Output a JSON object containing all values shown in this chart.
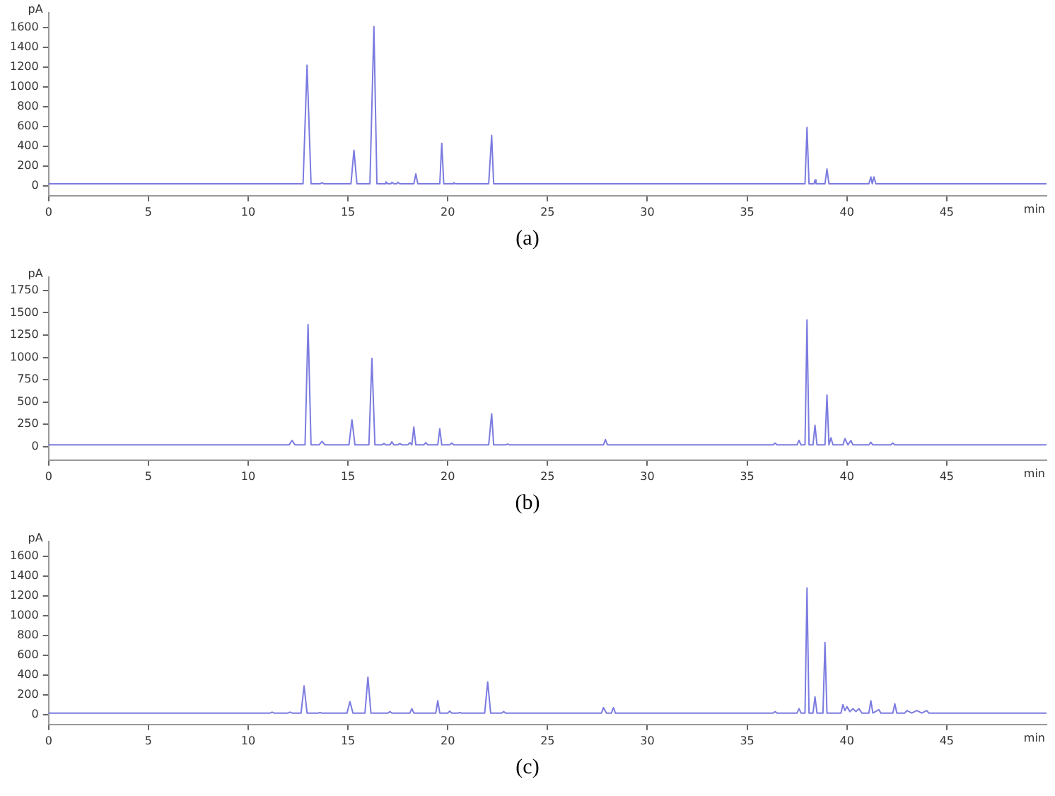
{
  "chart_data": [
    {
      "type": "line",
      "title": "(a)",
      "xlabel": "min",
      "ylabel": "pA",
      "xlim": [
        0,
        50
      ],
      "xticks": [
        0,
        5,
        10,
        15,
        20,
        25,
        30,
        35,
        40,
        45
      ],
      "ylim": [
        -100,
        1750
      ],
      "yticks": [
        0,
        200,
        400,
        600,
        800,
        1000,
        1200,
        1400,
        1600
      ],
      "grid": false,
      "legend": false,
      "marker": "none",
      "series": [
        {
          "color": "#7b7be0",
          "x": [
            0,
            12.75,
            12.95,
            13.15,
            13.6,
            13.7,
            13.8,
            15.15,
            15.3,
            15.45,
            16.1,
            16.3,
            16.45,
            16.85,
            16.9,
            17.0,
            17.15,
            17.2,
            17.3,
            17.45,
            17.5,
            17.6,
            18.3,
            18.4,
            18.5,
            19.6,
            19.7,
            19.8,
            20.25,
            20.3,
            20.4,
            22.05,
            22.2,
            22.3,
            37.9,
            38.0,
            38.1,
            38.35,
            38.4,
            38.45,
            38.9,
            39.0,
            39.1,
            41.1,
            41.2,
            41.27,
            41.35,
            41.45,
            50
          ],
          "values": [
            20,
            20,
            1220,
            20,
            20,
            30,
            20,
            20,
            360,
            20,
            20,
            1610,
            20,
            20,
            40,
            20,
            20,
            35,
            20,
            20,
            35,
            20,
            20,
            120,
            20,
            20,
            430,
            20,
            20,
            30,
            20,
            20,
            510,
            20,
            20,
            590,
            20,
            20,
            60,
            20,
            20,
            170,
            20,
            20,
            90,
            20,
            90,
            20,
            20
          ]
        }
      ]
    },
    {
      "type": "line",
      "title": "(b)",
      "xlabel": "min",
      "ylabel": "pA",
      "xlim": [
        0,
        50
      ],
      "xticks": [
        0,
        5,
        10,
        15,
        20,
        25,
        30,
        35,
        40,
        45
      ],
      "ylim": [
        -150,
        1900
      ],
      "yticks": [
        0,
        250,
        500,
        750,
        1000,
        1250,
        1500,
        1750
      ],
      "grid": false,
      "legend": false,
      "marker": "none",
      "series": [
        {
          "color": "#7b7be0",
          "x": [
            0,
            12.05,
            12.2,
            12.35,
            12.85,
            13.0,
            13.15,
            13.55,
            13.7,
            13.85,
            15.05,
            15.2,
            15.35,
            16.05,
            16.2,
            16.35,
            16.7,
            16.8,
            16.9,
            17.1,
            17.2,
            17.3,
            17.5,
            17.6,
            17.7,
            18.0,
            18.1,
            18.2,
            18.3,
            18.4,
            18.8,
            18.9,
            19.0,
            19.5,
            19.6,
            19.7,
            20.1,
            20.2,
            20.3,
            22.05,
            22.2,
            22.3,
            22.9,
            23.0,
            23.1,
            27.8,
            27.9,
            28.0,
            36.3,
            36.4,
            36.5,
            37.5,
            37.6,
            37.7,
            37.9,
            38.0,
            38.1,
            38.3,
            38.4,
            38.5,
            38.9,
            39.0,
            39.1,
            39.2,
            39.3,
            39.8,
            39.9,
            40.05,
            40.2,
            40.3,
            41.1,
            41.2,
            41.3,
            42.2,
            42.3,
            42.4,
            50
          ],
          "values": [
            20,
            20,
            70,
            20,
            20,
            1370,
            20,
            20,
            60,
            20,
            20,
            300,
            20,
            20,
            990,
            20,
            20,
            35,
            20,
            20,
            55,
            20,
            20,
            35,
            20,
            20,
            45,
            20,
            220,
            20,
            20,
            45,
            20,
            20,
            200,
            20,
            20,
            40,
            20,
            20,
            370,
            20,
            20,
            30,
            20,
            20,
            80,
            20,
            20,
            40,
            20,
            20,
            70,
            20,
            20,
            1420,
            20,
            20,
            240,
            20,
            20,
            580,
            20,
            100,
            20,
            20,
            90,
            20,
            70,
            20,
            20,
            50,
            20,
            20,
            40,
            20,
            20
          ]
        }
      ]
    },
    {
      "type": "line",
      "title": "(c)",
      "xlabel": "min",
      "ylabel": "pA",
      "xlim": [
        0,
        50
      ],
      "xticks": [
        0,
        5,
        10,
        15,
        20,
        25,
        30,
        35,
        40,
        45
      ],
      "ylim": [
        -100,
        1750
      ],
      "yticks": [
        0,
        200,
        400,
        600,
        800,
        1000,
        1200,
        1400,
        1600
      ],
      "grid": false,
      "legend": false,
      "marker": "none",
      "series": [
        {
          "color": "#7b7be0",
          "x": [
            0,
            11.1,
            11.2,
            11.3,
            12.0,
            12.1,
            12.2,
            12.65,
            12.8,
            12.95,
            13.5,
            13.6,
            13.7,
            14.95,
            15.1,
            15.25,
            15.85,
            16.0,
            16.15,
            17.0,
            17.1,
            17.2,
            18.1,
            18.2,
            18.3,
            19.4,
            19.5,
            19.6,
            20.0,
            20.1,
            20.2,
            20.5,
            20.6,
            20.7,
            21.85,
            22.0,
            22.15,
            22.7,
            22.8,
            22.9,
            27.7,
            27.8,
            27.95,
            28.2,
            28.3,
            28.4,
            36.3,
            36.4,
            36.5,
            37.5,
            37.6,
            37.7,
            37.9,
            38.0,
            38.1,
            38.3,
            38.4,
            38.5,
            38.8,
            38.9,
            39.0,
            39.7,
            39.8,
            39.9,
            40.0,
            40.15,
            40.3,
            40.45,
            40.6,
            40.75,
            41.1,
            41.2,
            41.3,
            41.6,
            41.7,
            42.3,
            42.4,
            42.5,
            42.9,
            43.0,
            43.25,
            43.5,
            43.75,
            44.0,
            44.1,
            50
          ],
          "values": [
            15,
            15,
            25,
            15,
            15,
            25,
            15,
            15,
            290,
            15,
            15,
            20,
            15,
            15,
            130,
            15,
            15,
            380,
            15,
            15,
            30,
            15,
            15,
            60,
            15,
            15,
            140,
            15,
            15,
            35,
            15,
            15,
            20,
            15,
            15,
            330,
            15,
            15,
            30,
            15,
            15,
            70,
            15,
            15,
            70,
            15,
            15,
            30,
            15,
            15,
            60,
            15,
            15,
            1280,
            15,
            15,
            180,
            15,
            15,
            730,
            15,
            15,
            100,
            40,
            80,
            30,
            60,
            30,
            60,
            15,
            15,
            140,
            15,
            50,
            15,
            15,
            110,
            15,
            15,
            40,
            15,
            40,
            15,
            40,
            15,
            15
          ]
        }
      ]
    }
  ]
}
